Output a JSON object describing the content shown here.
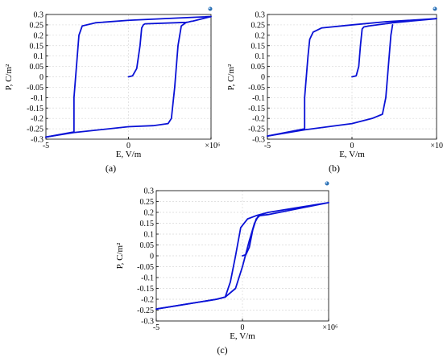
{
  "figure": {
    "panel_labels": [
      "(a)",
      "(b)",
      "(c)"
    ]
  },
  "chart_data": [
    {
      "type": "line",
      "panel": "(a)",
      "xlabel": "E, V/m",
      "ylabel": "P, C/m²",
      "x_multiplier_label": "×10⁶",
      "xlim": [
        -5000000,
        5000000
      ],
      "ylim": [
        -0.3,
        0.3
      ],
      "x_tick_labels": [
        "-5",
        "0",
        "5"
      ],
      "y_tick_labels": [
        "0.3",
        "0.25",
        "0.2",
        "0.15",
        "0.1",
        "0.05",
        "0",
        "-0.05",
        "-0.1",
        "-0.15",
        "-0.2",
        "-0.25",
        "-0.3"
      ],
      "grid": true,
      "series": [
        {
          "x": [
            0,
            250000,
            500000,
            700000,
            800000,
            900000,
            1000000,
            3500000,
            3600000,
            3700000,
            3800000,
            3900000,
            5000000,
            3000000,
            0,
            -2000000,
            -2800000,
            -3000000,
            -3100000,
            -3200000,
            -3300000,
            -3300000,
            -5000000
          ],
          "y": [
            0,
            0.005,
            0.04,
            0.15,
            0.235,
            0.25,
            0.255,
            0.262,
            0.263,
            0.265,
            0.267,
            0.268,
            0.29,
            0.283,
            0.272,
            0.26,
            0.245,
            0.2,
            0.1,
            0,
            -0.1,
            -0.265,
            -0.29
          ]
        },
        {
          "x": [
            -5000000,
            -3300000,
            0,
            1500000,
            2400000,
            2600000,
            2800000,
            3000000,
            3200000,
            3500000
          ],
          "y": [
            -0.29,
            -0.268,
            -0.24,
            -0.235,
            -0.225,
            -0.2,
            -0.05,
            0.15,
            0.245,
            0.262
          ]
        }
      ]
    },
    {
      "type": "line",
      "panel": "(b)",
      "xlabel": "E, V/m",
      "ylabel": "P, C/m²",
      "x_multiplier_label": "×10⁶",
      "xlim": [
        -5000000,
        5000000
      ],
      "ylim": [
        -0.3,
        0.3
      ],
      "x_tick_labels": [
        "-5",
        "0",
        "5"
      ],
      "y_tick_labels": [
        "0.3",
        "0.25",
        "0.2",
        "0.15",
        "0.1",
        "0.05",
        "0",
        "-0.05",
        "-0.1",
        "-0.15",
        "-0.2",
        "-0.25",
        "-0.3"
      ],
      "grid": true,
      "series": [
        {
          "x": [
            0,
            250000,
            400000,
            500000,
            600000,
            700000,
            1000000,
            2400000,
            5000000,
            2000000,
            0,
            -1800000,
            -2300000,
            -2500000,
            -2600000,
            -2700000,
            -2800000,
            -2800000,
            -5000000
          ],
          "y": [
            0,
            0.005,
            0.05,
            0.15,
            0.23,
            0.24,
            0.245,
            0.26,
            0.28,
            0.265,
            0.25,
            0.235,
            0.215,
            0.18,
            0.1,
            0,
            -0.1,
            -0.25,
            -0.285
          ]
        },
        {
          "x": [
            -5000000,
            -2800000,
            0,
            1200000,
            1800000,
            2000000,
            2100000,
            2200000,
            2300000,
            2400000
          ],
          "y": [
            -0.285,
            -0.255,
            -0.225,
            -0.2,
            -0.18,
            -0.1,
            0,
            0.1,
            0.2,
            0.25
          ]
        }
      ]
    },
    {
      "type": "line",
      "panel": "(c)",
      "xlabel": "E, V/m",
      "ylabel": "P, C/m²",
      "x_multiplier_label": "×10⁶",
      "xlim": [
        -5000000,
        5000000
      ],
      "ylim": [
        -0.3,
        0.3
      ],
      "x_tick_labels": [
        "-5",
        "0",
        "5"
      ],
      "y_tick_labels": [
        "0.3",
        "0.25",
        "0.2",
        "0.15",
        "0.1",
        "0.05",
        "0",
        "-0.05",
        "-0.1",
        "-0.15",
        "-0.2",
        "-0.25",
        "-0.3"
      ],
      "grid": true,
      "series": [
        {
          "x": [
            0,
            200000,
            400000,
            600000,
            800000,
            1000000,
            1500000,
            5000000,
            1500000,
            800000,
            300000,
            -100000,
            -400000,
            -700000,
            -1000000,
            -1500000,
            -5000000
          ],
          "y": [
            0,
            0.005,
            0.04,
            0.12,
            0.17,
            0.185,
            0.19,
            0.245,
            0.2,
            0.185,
            0.17,
            0.13,
            0.0,
            -0.12,
            -0.19,
            -0.2,
            -0.245
          ]
        },
        {
          "x": [
            -5000000,
            -1500000,
            -1000000,
            -400000,
            0,
            400000,
            700000,
            900000,
            1000000
          ],
          "y": [
            -0.245,
            -0.2,
            -0.19,
            -0.15,
            -0.05,
            0.07,
            0.15,
            0.18,
            0.185
          ]
        }
      ]
    }
  ]
}
